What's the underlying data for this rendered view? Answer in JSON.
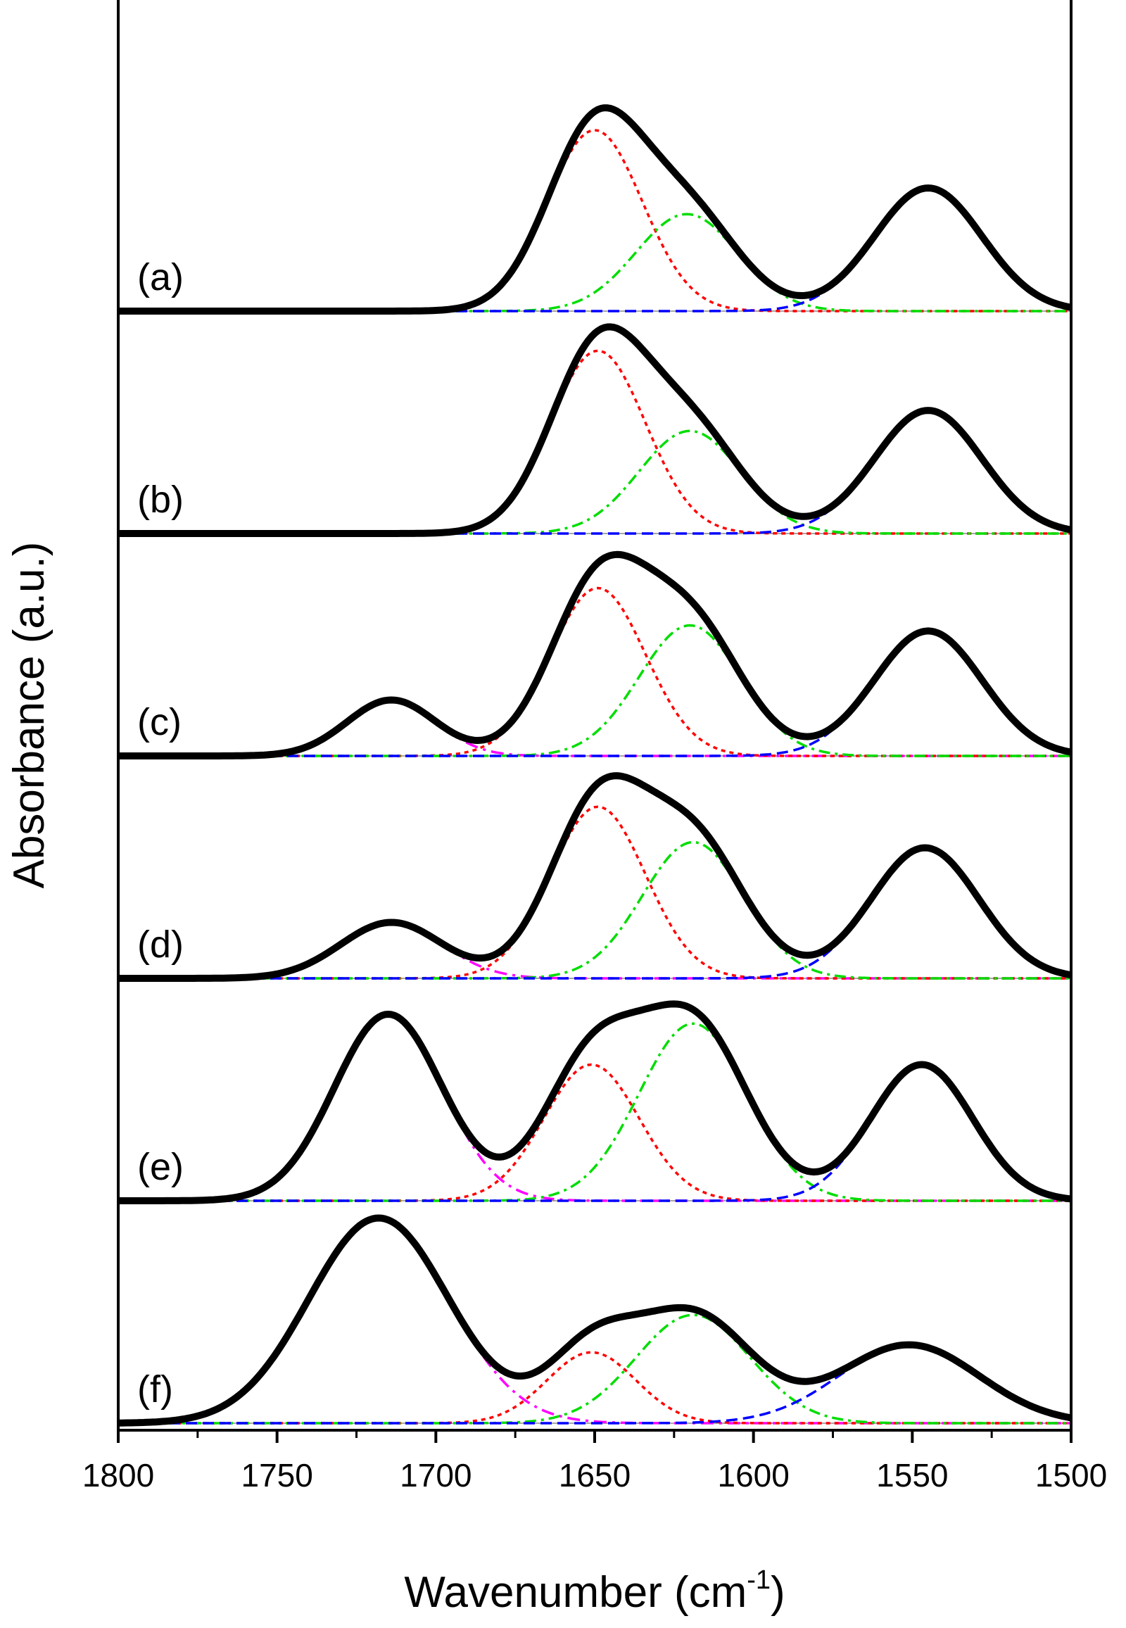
{
  "chart_data": {
    "type": "line",
    "xlabel": "Wavenumber (cm",
    "xlabel_sup": "-1",
    "xlabel_end": ")",
    "ylabel": "Absorbance (a.u.)",
    "xlim": [
      1800,
      1500
    ],
    "xticks": [
      "1800",
      "1750",
      "1700",
      "1650",
      "1600",
      "1550",
      "1500"
    ],
    "xtick_values": [
      1800,
      1750,
      1700,
      1650,
      1600,
      1550,
      1500
    ],
    "colors": {
      "total": "#000000",
      "peak_1715": "#ff00ff",
      "peak_1650": "#ff0000",
      "peak_1620": "#00dd00",
      "peak_1545": "#0000ff"
    },
    "panels": [
      {
        "label": "(a)",
        "components": [
          {
            "name": "peak_1650",
            "center": 1650,
            "amplitude": 0.97,
            "sigma": 15
          },
          {
            "name": "peak_1620",
            "center": 1621,
            "amplitude": 0.52,
            "sigma": 16
          },
          {
            "name": "peak_1545",
            "center": 1545,
            "amplitude": 0.66,
            "sigma": 17
          }
        ]
      },
      {
        "label": "(b)",
        "components": [
          {
            "name": "peak_1650",
            "center": 1649,
            "amplitude": 0.98,
            "sigma": 15
          },
          {
            "name": "peak_1620",
            "center": 1620,
            "amplitude": 0.55,
            "sigma": 16
          },
          {
            "name": "peak_1545",
            "center": 1545,
            "amplitude": 0.66,
            "sigma": 17
          }
        ]
      },
      {
        "label": "(c)",
        "components": [
          {
            "name": "peak_1715",
            "center": 1714,
            "amplitude": 0.3,
            "sigma": 14
          },
          {
            "name": "peak_1650",
            "center": 1649,
            "amplitude": 0.9,
            "sigma": 15
          },
          {
            "name": "peak_1620",
            "center": 1620,
            "amplitude": 0.7,
            "sigma": 16
          },
          {
            "name": "peak_1545",
            "center": 1545,
            "amplitude": 0.67,
            "sigma": 17
          }
        ]
      },
      {
        "label": "(d)",
        "components": [
          {
            "name": "peak_1715",
            "center": 1714,
            "amplitude": 0.3,
            "sigma": 16
          },
          {
            "name": "peak_1650",
            "center": 1649,
            "amplitude": 0.92,
            "sigma": 15
          },
          {
            "name": "peak_1620",
            "center": 1619,
            "amplitude": 0.73,
            "sigma": 16
          },
          {
            "name": "peak_1545",
            "center": 1546,
            "amplitude": 0.7,
            "sigma": 17
          }
        ]
      },
      {
        "label": "(e)",
        "components": [
          {
            "name": "peak_1715",
            "center": 1715,
            "amplitude": 1.0,
            "sigma": 17
          },
          {
            "name": "peak_1650",
            "center": 1651,
            "amplitude": 0.73,
            "sigma": 15
          },
          {
            "name": "peak_1620",
            "center": 1619,
            "amplitude": 0.95,
            "sigma": 17
          },
          {
            "name": "peak_1545",
            "center": 1547,
            "amplitude": 0.73,
            "sigma": 16
          }
        ]
      },
      {
        "label": "(f)",
        "components": [
          {
            "name": "peak_1715",
            "center": 1718,
            "amplitude": 1.1,
            "sigma": 22
          },
          {
            "name": "peak_1650",
            "center": 1651,
            "amplitude": 0.38,
            "sigma": 14
          },
          {
            "name": "peak_1620",
            "center": 1619,
            "amplitude": 0.58,
            "sigma": 18
          },
          {
            "name": "peak_1545",
            "center": 1551,
            "amplitude": 0.42,
            "sigma": 22
          }
        ]
      }
    ]
  }
}
